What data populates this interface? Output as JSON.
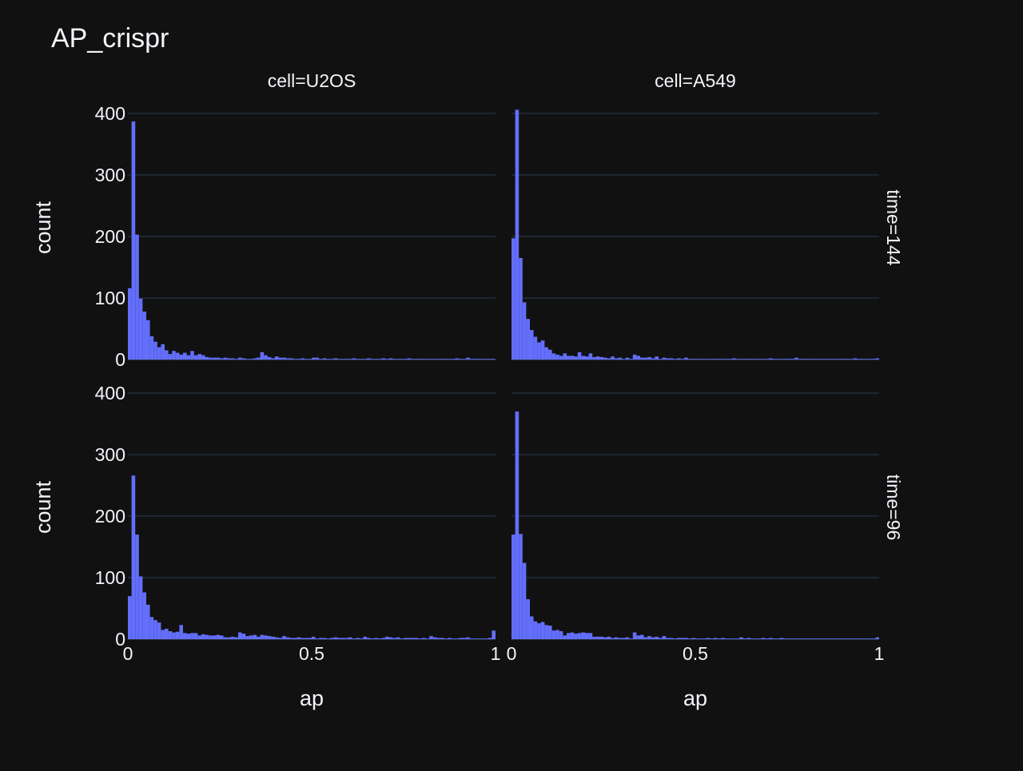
{
  "chart_data": {
    "type": "bar",
    "title": "AP_crispr",
    "xlabel": "ap",
    "ylabel": "count",
    "xlim": [
      0,
      1
    ],
    "ylim": [
      0,
      420
    ],
    "x_ticks": [
      {
        "value": 0,
        "label": "0"
      },
      {
        "value": 0.5,
        "label": "0.5"
      },
      {
        "value": 1,
        "label": "1"
      }
    ],
    "y_ticks": [
      {
        "value": 0,
        "label": "0"
      },
      {
        "value": 100,
        "label": "100"
      },
      {
        "value": 200,
        "label": "200"
      },
      {
        "value": 300,
        "label": "300"
      },
      {
        "value": 400,
        "label": "400"
      }
    ],
    "grid": true,
    "bin_width": 0.01,
    "col_titles": [
      "cell=U2OS",
      "cell=A549"
    ],
    "row_titles": [
      "time=144",
      "time=96"
    ],
    "colors": {
      "background": "#111111",
      "grid": "#283442",
      "bar": "#636efa",
      "text": "#f2f5fa"
    },
    "panels": [
      {
        "cell": "U2OS",
        "time": "144",
        "values": [
          116,
          387,
          203,
          99,
          78,
          64,
          38,
          29,
          20,
          25,
          15,
          9,
          14,
          11,
          8,
          11,
          7,
          14,
          7,
          9,
          7,
          4,
          3,
          3,
          3,
          2,
          3,
          2,
          2,
          1,
          3,
          2,
          1,
          1,
          2,
          3,
          12,
          7,
          4,
          2,
          5,
          3,
          3,
          2,
          2,
          1,
          1,
          2,
          1,
          1,
          3,
          3,
          1,
          2,
          1,
          1,
          2,
          1,
          1,
          1,
          1,
          2,
          1,
          1,
          1,
          2,
          1,
          1,
          1,
          2,
          1,
          2,
          1,
          1,
          1,
          1,
          2,
          1,
          1,
          1,
          1,
          1,
          1,
          1,
          1,
          1,
          1,
          1,
          1,
          2,
          1,
          1,
          3,
          1,
          1,
          1,
          1,
          1,
          1,
          1
        ]
      },
      {
        "cell": "A549",
        "time": "144",
        "values": [
          197,
          406,
          165,
          93,
          66,
          48,
          37,
          28,
          31,
          20,
          16,
          10,
          8,
          6,
          10,
          6,
          6,
          5,
          12,
          6,
          5,
          10,
          4,
          5,
          4,
          3,
          2,
          5,
          2,
          3,
          1,
          3,
          1,
          8,
          6,
          3,
          3,
          4,
          2,
          5,
          1,
          3,
          2,
          2,
          1,
          2,
          1,
          3,
          1,
          1,
          1,
          1,
          1,
          1,
          1,
          1,
          1,
          1,
          1,
          1,
          2,
          1,
          1,
          1,
          1,
          1,
          1,
          1,
          1,
          1,
          2,
          1,
          1,
          1,
          1,
          1,
          1,
          3,
          1,
          1,
          1,
          1,
          1,
          1,
          1,
          1,
          1,
          1,
          1,
          1,
          1,
          1,
          1,
          2,
          1,
          1,
          1,
          1,
          1,
          2
        ]
      },
      {
        "cell": "U2OS",
        "time": "96",
        "values": [
          70,
          266,
          170,
          102,
          76,
          56,
          36,
          31,
          27,
          15,
          17,
          13,
          11,
          12,
          23,
          10,
          9,
          10,
          10,
          6,
          8,
          7,
          6,
          6,
          7,
          6,
          3,
          3,
          4,
          3,
          11,
          9,
          5,
          6,
          7,
          4,
          7,
          6,
          5,
          4,
          3,
          2,
          5,
          3,
          2,
          2,
          3,
          2,
          2,
          2,
          4,
          1,
          2,
          2,
          1,
          2,
          3,
          2,
          2,
          2,
          3,
          1,
          2,
          1,
          4,
          2,
          1,
          2,
          1,
          2,
          4,
          3,
          2,
          3,
          1,
          2,
          2,
          2,
          2,
          1,
          2,
          1,
          5,
          3,
          2,
          2,
          1,
          2,
          1,
          1,
          2,
          2,
          3,
          1,
          1,
          1,
          1,
          1,
          2,
          14
        ]
      },
      {
        "cell": "A549",
        "time": "96",
        "values": [
          170,
          370,
          171,
          124,
          65,
          37,
          29,
          26,
          28,
          23,
          22,
          14,
          15,
          13,
          6,
          10,
          11,
          9,
          10,
          11,
          10,
          10,
          4,
          4,
          4,
          3,
          4,
          2,
          3,
          2,
          2,
          3,
          1,
          11,
          6,
          7,
          3,
          5,
          3,
          4,
          2,
          5,
          2,
          2,
          1,
          2,
          2,
          2,
          1,
          2,
          1,
          1,
          1,
          2,
          1,
          2,
          1,
          2,
          1,
          1,
          1,
          1,
          3,
          1,
          2,
          1,
          1,
          1,
          2,
          1,
          2,
          1,
          1,
          2,
          1,
          1,
          1,
          1,
          1,
          1,
          1,
          1,
          1,
          1,
          1,
          1,
          1,
          1,
          1,
          1,
          1,
          1,
          1,
          1,
          1,
          1,
          1,
          1,
          1,
          3
        ]
      }
    ]
  }
}
